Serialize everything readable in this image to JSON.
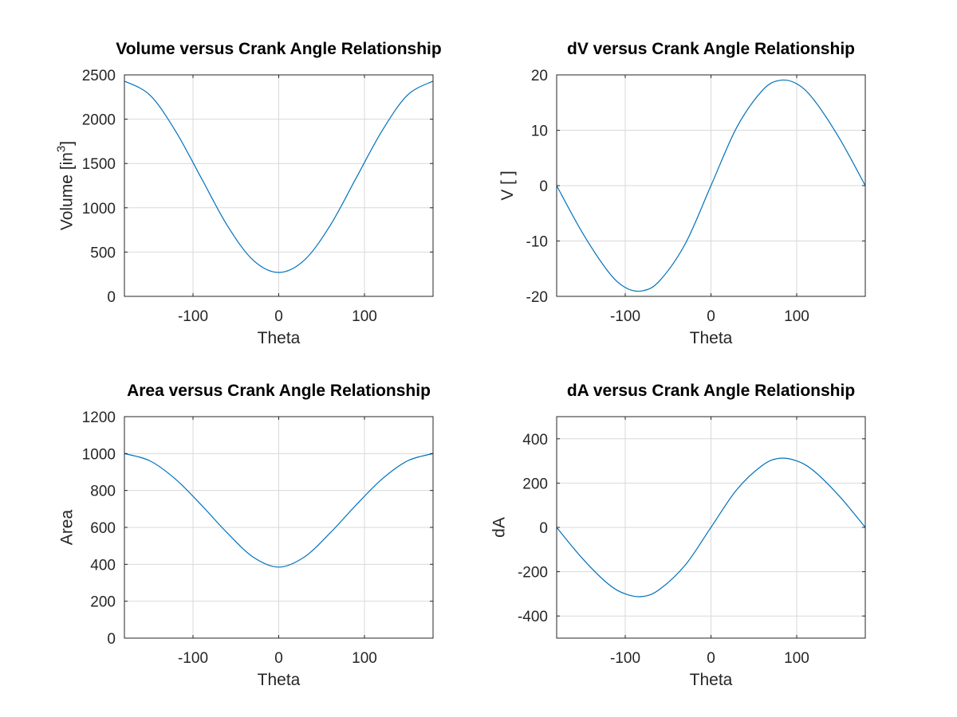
{
  "chart_data": [
    {
      "type": "line",
      "title": "Volume versus Crank Angle Relationship",
      "xlabel": "Theta",
      "ylabel": "Volume [in^3]",
      "ylabel_parts": {
        "main": "Volume [in",
        "sup": "3",
        "close": "]"
      },
      "xlim": [
        -180,
        180
      ],
      "ylim": [
        0,
        2500
      ],
      "xticks": [
        -100,
        0,
        100
      ],
      "yticks": [
        0,
        500,
        1000,
        1500,
        2000,
        2500
      ],
      "grid": true,
      "color": "#0072bd",
      "x": [
        -180,
        -150,
        -120,
        -90,
        -60,
        -30,
        0,
        30,
        60,
        90,
        120,
        150,
        180
      ],
      "y": [
        2430,
        2270,
        1860,
        1330,
        800,
        410,
        270,
        410,
        800,
        1330,
        1860,
        2270,
        2430
      ]
    },
    {
      "type": "line",
      "title": "dV versus Crank Angle Relationship",
      "xlabel": "Theta",
      "ylabel": "V [ ]",
      "ylabel_parts": {
        "main": "V [ ]",
        "sup": "",
        "close": ""
      },
      "xlim": [
        -180,
        180
      ],
      "ylim": [
        -20,
        20
      ],
      "xticks": [
        -100,
        0,
        100
      ],
      "yticks": [
        -20,
        -10,
        0,
        10,
        20
      ],
      "grid": true,
      "color": "#0072bd",
      "x": [
        -180,
        -150,
        -120,
        -100,
        -80,
        -60,
        -30,
        0,
        30,
        60,
        80,
        100,
        120,
        150,
        180
      ],
      "y": [
        0,
        -8.5,
        -15.5,
        -18.4,
        -19,
        -17.2,
        -10.5,
        0,
        10.5,
        17.2,
        19,
        18.4,
        15.5,
        8.5,
        0
      ]
    },
    {
      "type": "line",
      "title": "Area versus Crank Angle Relationship",
      "xlabel": "Theta",
      "ylabel": "Area",
      "ylabel_parts": {
        "main": "Area",
        "sup": "",
        "close": ""
      },
      "xlim": [
        -180,
        180
      ],
      "ylim": [
        0,
        1200
      ],
      "xticks": [
        -100,
        0,
        100
      ],
      "yticks": [
        0,
        200,
        400,
        600,
        800,
        1000,
        1200
      ],
      "grid": true,
      "color": "#0072bd",
      "x": [
        -180,
        -150,
        -120,
        -90,
        -60,
        -30,
        0,
        30,
        60,
        90,
        120,
        150,
        180
      ],
      "y": [
        1000,
        960,
        860,
        720,
        570,
        440,
        385,
        440,
        570,
        720,
        860,
        960,
        1000
      ]
    },
    {
      "type": "line",
      "title": "dA versus Crank Angle Relationship",
      "xlabel": "Theta",
      "ylabel": "dA",
      "ylabel_parts": {
        "main": "dA",
        "sup": "",
        "close": ""
      },
      "xlim": [
        -180,
        180
      ],
      "ylim": [
        -500,
        500
      ],
      "xticks": [
        -100,
        0,
        100
      ],
      "yticks": [
        -400,
        -200,
        0,
        200,
        400
      ],
      "grid": true,
      "color": "#0072bd",
      "x": [
        -180,
        -150,
        -120,
        -100,
        -80,
        -60,
        -30,
        0,
        30,
        60,
        80,
        100,
        120,
        150,
        180
      ],
      "y": [
        0,
        -140,
        -255,
        -300,
        -312,
        -280,
        -170,
        0,
        170,
        280,
        312,
        300,
        255,
        140,
        0
      ]
    }
  ]
}
